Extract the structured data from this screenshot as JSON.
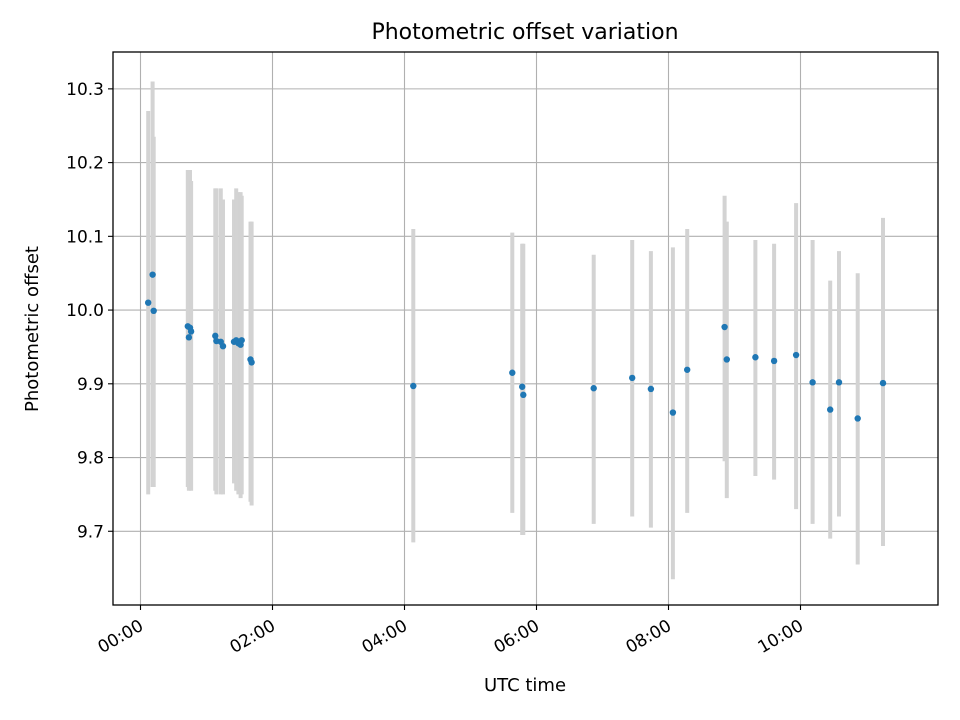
{
  "chart_data": {
    "type": "scatter",
    "title": "Photometric offset variation",
    "xlabel": "UTC time",
    "ylabel": "Photometric offset",
    "xlim": [
      "-00:25",
      "12:05"
    ],
    "ylim": [
      9.6,
      10.35
    ],
    "x_ticks": [
      "00:00",
      "02:00",
      "04:00",
      "06:00",
      "08:00",
      "10:00"
    ],
    "y_ticks": [
      "9.7",
      "9.8",
      "9.9",
      "10.0",
      "10.1",
      "10.2",
      "10.3"
    ],
    "grid": true,
    "marker_color": "#1f77b4",
    "errorbar_color": "#d3d3d3",
    "points": [
      {
        "x": "00:07",
        "y": 10.01,
        "lo": 9.75,
        "hi": 10.27
      },
      {
        "x": "00:11",
        "y": 10.048,
        "lo": 9.76,
        "hi": 10.31
      },
      {
        "x": "00:12",
        "y": 9.999,
        "lo": 9.76,
        "hi": 10.235
      },
      {
        "x": "00:43",
        "y": 9.978,
        "lo": 9.76,
        "hi": 10.19
      },
      {
        "x": "00:44",
        "y": 9.963,
        "lo": 9.755,
        "hi": 10.19
      },
      {
        "x": "00:45",
        "y": 9.976,
        "lo": 9.765,
        "hi": 10.19
      },
      {
        "x": "00:46",
        "y": 9.971,
        "lo": 9.755,
        "hi": 10.175
      },
      {
        "x": "01:08",
        "y": 9.965,
        "lo": 9.755,
        "hi": 10.165
      },
      {
        "x": "01:09",
        "y": 9.958,
        "lo": 9.75,
        "hi": 10.165
      },
      {
        "x": "01:13",
        "y": 9.957,
        "lo": 9.75,
        "hi": 10.165
      },
      {
        "x": "01:15",
        "y": 9.951,
        "lo": 9.75,
        "hi": 10.15
      },
      {
        "x": "01:25",
        "y": 9.957,
        "lo": 9.765,
        "hi": 10.15
      },
      {
        "x": "01:27",
        "y": 9.959,
        "lo": 9.755,
        "hi": 10.165
      },
      {
        "x": "01:29",
        "y": 9.955,
        "lo": 9.75,
        "hi": 10.16
      },
      {
        "x": "01:31",
        "y": 9.953,
        "lo": 9.745,
        "hi": 10.16
      },
      {
        "x": "01:32",
        "y": 9.959,
        "lo": 9.75,
        "hi": 10.155
      },
      {
        "x": "01:40",
        "y": 9.933,
        "lo": 9.74,
        "hi": 10.12
      },
      {
        "x": "01:41",
        "y": 9.929,
        "lo": 9.735,
        "hi": 10.12
      },
      {
        "x": "04:08",
        "y": 9.897,
        "lo": 9.685,
        "hi": 10.11
      },
      {
        "x": "05:38",
        "y": 9.915,
        "lo": 9.725,
        "hi": 10.105
      },
      {
        "x": "05:47",
        "y": 9.896,
        "lo": 9.695,
        "hi": 10.09
      },
      {
        "x": "05:48",
        "y": 9.885,
        "lo": 9.695,
        "hi": 10.09
      },
      {
        "x": "06:52",
        "y": 9.894,
        "lo": 9.71,
        "hi": 10.075
      },
      {
        "x": "07:27",
        "y": 9.908,
        "lo": 9.72,
        "hi": 10.095
      },
      {
        "x": "07:44",
        "y": 9.893,
        "lo": 9.705,
        "hi": 10.08
      },
      {
        "x": "08:04",
        "y": 9.861,
        "lo": 9.635,
        "hi": 10.085
      },
      {
        "x": "08:17",
        "y": 9.919,
        "lo": 9.725,
        "hi": 10.11
      },
      {
        "x": "08:51",
        "y": 9.977,
        "lo": 9.795,
        "hi": 10.155
      },
      {
        "x": "08:53",
        "y": 9.933,
        "lo": 9.745,
        "hi": 10.12
      },
      {
        "x": "09:19",
        "y": 9.936,
        "lo": 9.775,
        "hi": 10.095
      },
      {
        "x": "09:36",
        "y": 9.931,
        "lo": 9.77,
        "hi": 10.09
      },
      {
        "x": "09:56",
        "y": 9.939,
        "lo": 9.73,
        "hi": 10.145
      },
      {
        "x": "10:11",
        "y": 9.902,
        "lo": 9.71,
        "hi": 10.095
      },
      {
        "x": "10:27",
        "y": 9.865,
        "lo": 9.69,
        "hi": 10.04
      },
      {
        "x": "10:35",
        "y": 9.902,
        "lo": 9.72,
        "hi": 10.08
      },
      {
        "x": "10:52",
        "y": 9.853,
        "lo": 9.655,
        "hi": 10.05
      },
      {
        "x": "11:15",
        "y": 9.901,
        "lo": 9.68,
        "hi": 10.125
      }
    ]
  }
}
